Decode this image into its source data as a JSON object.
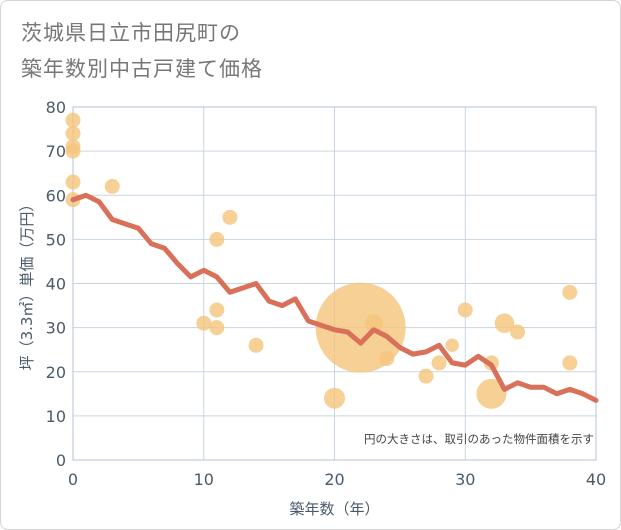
{
  "title_lines": [
    "茨城県日立市田尻町の",
    "築年数別中古戸建て価格"
  ],
  "chart_data": {
    "type": "scatter",
    "title": "茨城県日立市田尻町の築年数別中古戸建て価格",
    "xlabel": "築年数（年）",
    "ylabel": "坪（3.3㎡）単価（万円）",
    "xlim": [
      0,
      40
    ],
    "ylim": [
      0,
      80
    ],
    "xticks": [
      0,
      10,
      20,
      30,
      40
    ],
    "yticks": [
      0,
      10,
      20,
      30,
      40,
      50,
      60,
      70,
      80
    ],
    "grid": true,
    "note": "円の大きさは、取引のあった物件面積を示す",
    "bubble_color": "#f5c47a",
    "line_color": "#d9705a",
    "points": [
      {
        "x": 0,
        "y": 77,
        "size": 1
      },
      {
        "x": 0,
        "y": 74,
        "size": 1
      },
      {
        "x": 0,
        "y": 71,
        "size": 1
      },
      {
        "x": 0,
        "y": 70,
        "size": 1
      },
      {
        "x": 0,
        "y": 63,
        "size": 1
      },
      {
        "x": 0,
        "y": 59,
        "size": 1
      },
      {
        "x": 3,
        "y": 62,
        "size": 1
      },
      {
        "x": 10,
        "y": 31,
        "size": 1
      },
      {
        "x": 11,
        "y": 50,
        "size": 1
      },
      {
        "x": 11,
        "y": 34,
        "size": 1
      },
      {
        "x": 11,
        "y": 30,
        "size": 1
      },
      {
        "x": 12,
        "y": 55,
        "size": 1
      },
      {
        "x": 14,
        "y": 26,
        "size": 1
      },
      {
        "x": 20,
        "y": 14,
        "size": 1.4
      },
      {
        "x": 22,
        "y": 30,
        "size": 6
      },
      {
        "x": 23,
        "y": 31,
        "size": 1.2
      },
      {
        "x": 24,
        "y": 23,
        "size": 1
      },
      {
        "x": 27,
        "y": 19,
        "size": 1
      },
      {
        "x": 28,
        "y": 22,
        "size": 1
      },
      {
        "x": 29,
        "y": 26,
        "size": 0.9
      },
      {
        "x": 30,
        "y": 34,
        "size": 1
      },
      {
        "x": 32,
        "y": 22,
        "size": 1
      },
      {
        "x": 32,
        "y": 15,
        "size": 2
      },
      {
        "x": 33,
        "y": 31,
        "size": 1.3
      },
      {
        "x": 34,
        "y": 29,
        "size": 1
      },
      {
        "x": 38,
        "y": 38,
        "size": 1
      },
      {
        "x": 38,
        "y": 22,
        "size": 1
      }
    ],
    "trend": {
      "x": [
        0,
        1,
        2,
        3,
        4,
        5,
        6,
        7,
        8,
        9,
        10,
        11,
        12,
        13,
        14,
        15,
        16,
        17,
        18,
        19,
        20,
        21,
        22,
        23,
        24,
        25,
        26,
        27,
        28,
        29,
        30,
        31,
        32,
        33,
        34,
        35,
        36,
        37,
        38,
        39,
        40
      ],
      "y": [
        59,
        60,
        58.5,
        54.5,
        53.5,
        52.5,
        49,
        48,
        44.5,
        41.5,
        43,
        41.5,
        38,
        39,
        40,
        36,
        35,
        36.5,
        31.5,
        30.5,
        29.5,
        29,
        26.5,
        29.5,
        28,
        25.5,
        24,
        24.5,
        26,
        22,
        21.5,
        23.5,
        21.5,
        16,
        17.5,
        16.5,
        16.5,
        15,
        16,
        15,
        13.5
      ]
    }
  }
}
